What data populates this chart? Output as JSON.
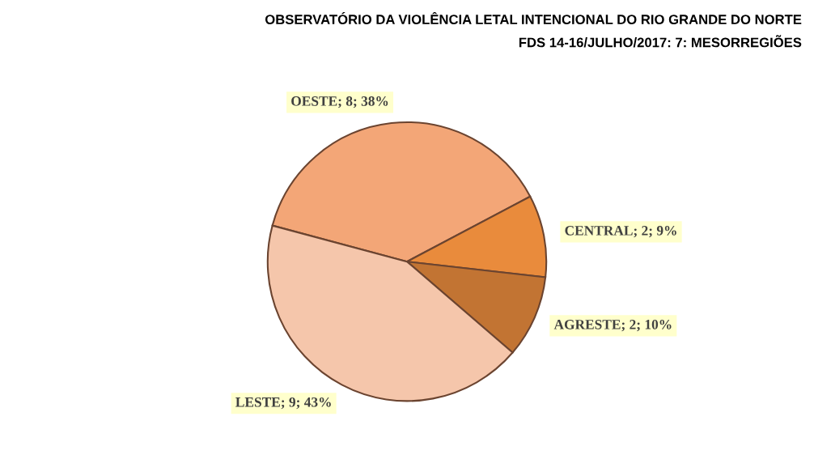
{
  "chart_data": {
    "type": "pie",
    "title": "OBSERVATÓRIO DA VIOLÊNCIA LETAL INTENCIONAL DO RIO GRANDE DO NORTE",
    "subtitle": "FDS 14-16/JULHO/2017: 7: MESORREGIÕES",
    "categories": [
      "OESTE; 8; 38%",
      "CENTRAL; 2; 9%",
      "AGRESTE; 2; 10%",
      "LESTE; 9; 43%"
    ],
    "values": [
      8,
      2,
      2,
      9
    ],
    "colors": [
      "#f3a677",
      "#e98b3c",
      "#c27433",
      "#f5c6ab"
    ]
  }
}
